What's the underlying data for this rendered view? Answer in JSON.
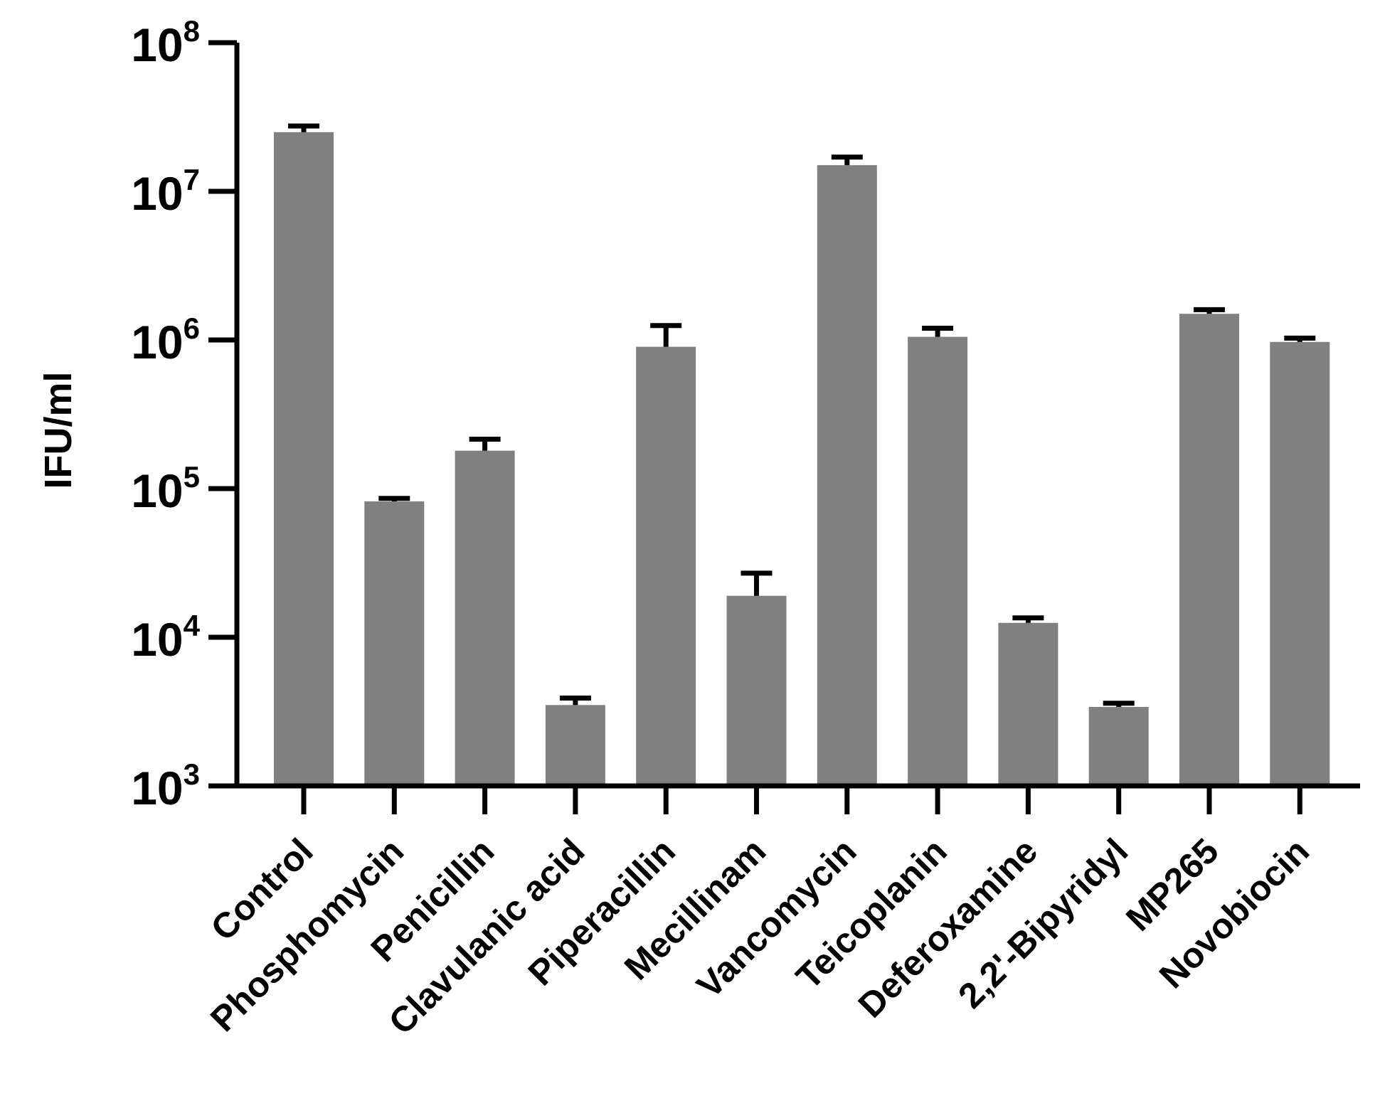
{
  "chart_data": {
    "type": "bar",
    "title": "",
    "xlabel": "",
    "ylabel": "IFU/ml",
    "yscale": "log",
    "ylim": [
      1000,
      100000000
    ],
    "yticks": [
      {
        "value": 1000,
        "base": "10",
        "exp": "3"
      },
      {
        "value": 10000,
        "base": "10",
        "exp": "4"
      },
      {
        "value": 100000,
        "base": "10",
        "exp": "5"
      },
      {
        "value": 1000000,
        "base": "10",
        "exp": "6"
      },
      {
        "value": 10000000,
        "base": "10",
        "exp": "7"
      },
      {
        "value": 100000000,
        "base": "10",
        "exp": "8"
      }
    ],
    "categories": [
      "Control",
      "Phosphomycin",
      "Penicillin",
      "Clavulanic acid",
      "Piperacillin",
      "Mecillinam",
      "Vancomycin",
      "Teicoplanin",
      "Deferoxamine",
      "2,2'-Bipyridyl",
      "MP265",
      "Novobiocin"
    ],
    "values": [
      25000000,
      82000,
      180000,
      3500,
      900000,
      19000,
      15000000,
      1050000,
      12500,
      3400,
      1500000,
      970000
    ],
    "error_upper": [
      27500000,
      86000,
      215000,
      3900,
      1250000,
      27000,
      17000000,
      1200000,
      13500,
      3600,
      1600000,
      1030000
    ],
    "bar_color": "#808080",
    "grid": false,
    "legend": "none"
  }
}
